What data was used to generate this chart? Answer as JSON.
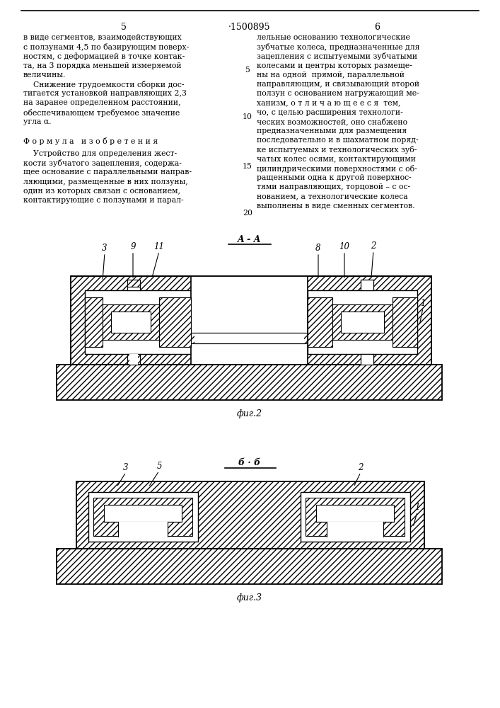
{
  "page_bg": "#ffffff",
  "text_color": "#000000",
  "line_color": "#000000",
  "page_num_left": "5",
  "page_center": "·1500895",
  "page_num_right": "6",
  "col_left_lines": [
    "в виде сегментов, взаимодействующих",
    "с ползунами 4,5 по базирующим поверх-",
    "ностям, с деформацией в точке контак-",
    "та, на 3 порядка меньшей измеряемой",
    "величины.",
    "    Снижение трудоемкости сборки дос-",
    "тигается установкой направляющих 2,3",
    "на заранее определенном расстоянии,",
    "обеспечивающем требуемое значение",
    "угла α."
  ],
  "col_right_lines": [
    "лельные основанию технологические",
    "зубчатые колеса, предназначенные для",
    "зацепления с испытуемыми зубчатыми",
    "колесами и центры которых размеще-",
    "ны на одной  прямой, параллельной",
    "направляющим, и связывающий второй",
    "ползун с основанием нагружающий ме-",
    "ханизм, о т л и ч а ю щ е е с я  тем,",
    "чо, с целью расширения технологи-"
  ],
  "col_right_cont_lines": [
    "ческих возможностей, оно снабжено",
    "предназначенными для размещения",
    "последовательно и в шахматном поряд-",
    "ке испытуемых и технологических зуб-",
    "чатых колес осями, контактирующими",
    "цилиндрическими поверхностями с об-",
    "ращенными одна к другой поверхнос-",
    "тями направляющих, торцовой – с ос-",
    "нованием, а технологические колеса",
    "выполнены в виде сменных сегментов."
  ],
  "formula_header": "Ф о р м у л а   и з о б р е т е н и я",
  "col_left_formula_lines": [
    "    Устройство для определения жест-",
    "кости зубчатого зацепления, содержа-",
    "щее основание с параллельными направ-",
    "ляющими, размещенные в них ползуны,",
    "один из которых связан с основанием,",
    "контактирующие с ползунами и парал-"
  ],
  "fig2_caption": "фиг.2",
  "fig3_caption": "фиг.3",
  "fig2_section_label": "A-A",
  "fig3_section_label": "б · б"
}
